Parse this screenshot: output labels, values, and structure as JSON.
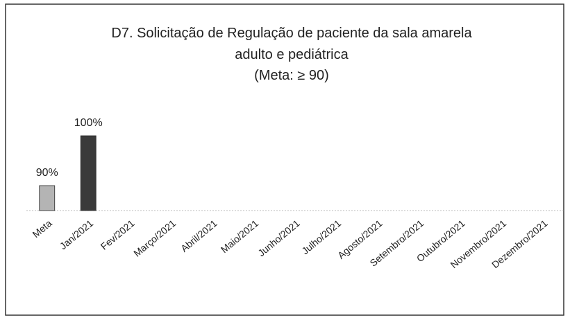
{
  "chart_data": {
    "type": "bar",
    "title": [
      "D7. Solicitação de Regulação de paciente da sala amarela",
      "adulto e pediátrica"
    ],
    "subtitle": "(Meta: ≥ 90)",
    "categories": [
      "Meta",
      "Jan/2021",
      "Fev/2021",
      "Março/2021",
      "Abril/2021",
      "Maio/2021",
      "Junho/2021",
      "Julho/2021",
      "Agosto/2021",
      "Setembro/2021",
      "Outubro/2021",
      "Novembro/2021",
      "Dezembro/2021"
    ],
    "values": [
      90,
      100,
      null,
      null,
      null,
      null,
      null,
      null,
      null,
      null,
      null,
      null,
      null
    ],
    "value_labels": [
      "90%",
      "100%",
      null,
      null,
      null,
      null,
      null,
      null,
      null,
      null,
      null,
      null,
      null
    ],
    "colors": [
      "#b4b4b4",
      "#3a3a3a",
      null,
      null,
      null,
      null,
      null,
      null,
      null,
      null,
      null,
      null,
      null
    ],
    "ylim": [
      85,
      102
    ]
  }
}
